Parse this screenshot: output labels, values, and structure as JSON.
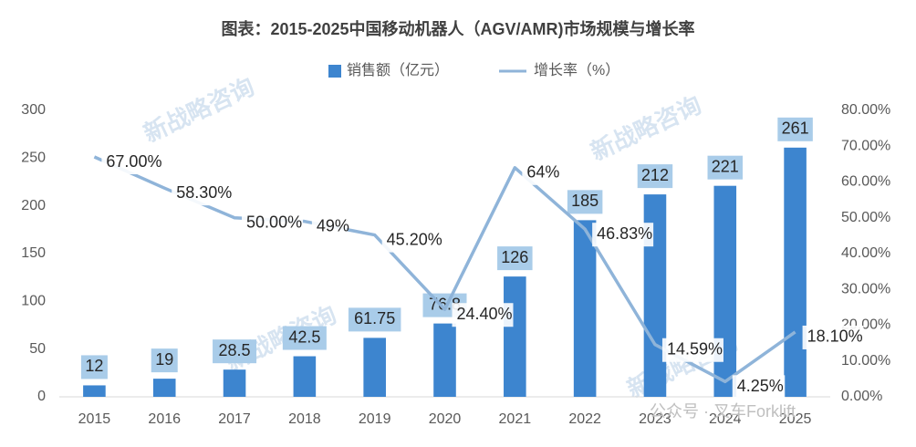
{
  "chart_data": {
    "type": "combo",
    "title": "图表：2015-2025中国移动机器人（AGV/AMR)市场规模与增长率",
    "watermark": "新战略咨询",
    "footer_watermark": "公众号 · 叉车Forklift",
    "categories": [
      "2015",
      "2016",
      "2017",
      "2018",
      "2019",
      "2020",
      "2021",
      "2022",
      "2023",
      "2024",
      "2025"
    ],
    "series": [
      {
        "name": "销售额（亿元）",
        "type": "bar",
        "color": "#3d85cf",
        "label_color": "#a9cce9",
        "values": [
          12,
          19,
          28.5,
          42.5,
          61.75,
          76.8,
          126,
          185,
          212,
          221,
          261
        ]
      },
      {
        "name": "增长率（%）",
        "type": "line",
        "axis": "y2",
        "color": "#8fb4d9",
        "values": [
          67,
          58.3,
          50,
          49,
          45.2,
          24.4,
          64,
          46.83,
          14.59,
          4.25,
          18.1
        ],
        "value_labels": [
          "67.00%",
          "58.30%",
          "50.00%",
          "49%",
          "45.20%",
          "24.40%",
          "64%",
          "46.83%",
          "14.59%",
          "4.25%",
          "18.10%"
        ]
      }
    ],
    "ylim": [
      0,
      300
    ],
    "yticks": [
      0,
      50,
      100,
      150,
      200,
      250,
      300
    ],
    "y2lim": [
      0,
      80
    ],
    "y2ticks": [
      {
        "value": 0,
        "label": "0.00%"
      },
      {
        "value": 10,
        "label": "10.00%"
      },
      {
        "value": 20,
        "label": "20.00%"
      },
      {
        "value": 30,
        "label": "30.00%"
      },
      {
        "value": 40,
        "label": "40.00%"
      },
      {
        "value": 50,
        "label": "50.00%"
      },
      {
        "value": 60,
        "label": "60.00%"
      },
      {
        "value": 70,
        "label": "70.00%"
      },
      {
        "value": 80,
        "label": "80.00%"
      }
    ],
    "grid": false,
    "legend": "top"
  }
}
